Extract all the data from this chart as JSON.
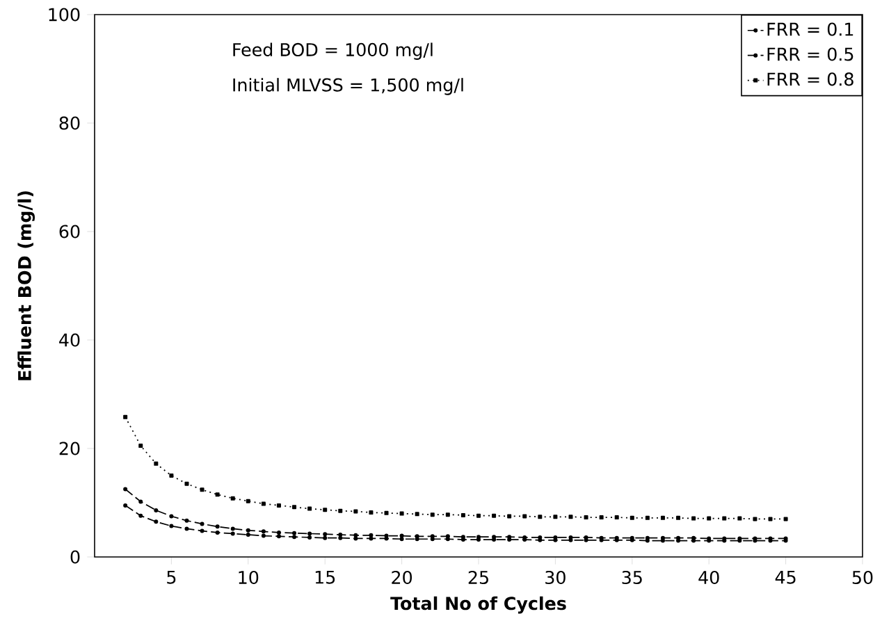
{
  "chart_data": {
    "type": "line",
    "xlabel": "Total No of Cycles",
    "ylabel": "Effluent BOD (mg/l)",
    "annotations": [
      "Feed BOD = 1000 mg/l",
      "Initial MLVSS = 1,500 mg/l"
    ],
    "x": [
      2,
      3,
      4,
      5,
      6,
      7,
      8,
      9,
      10,
      11,
      12,
      13,
      14,
      15,
      16,
      17,
      18,
      19,
      20,
      21,
      22,
      23,
      24,
      25,
      26,
      27,
      28,
      29,
      30,
      31,
      32,
      33,
      34,
      35,
      36,
      37,
      38,
      39,
      40,
      41,
      42,
      43,
      44,
      45
    ],
    "series": [
      {
        "name": "FRR = 0.1",
        "color": "#000000",
        "line_style": "dashed",
        "marker": "circle",
        "values": [
          9.5,
          7.6,
          6.5,
          5.7,
          5.2,
          4.8,
          4.5,
          4.3,
          4.1,
          3.9,
          3.8,
          3.7,
          3.6,
          3.5,
          3.5,
          3.4,
          3.4,
          3.4,
          3.3,
          3.3,
          3.3,
          3.3,
          3.2,
          3.2,
          3.2,
          3.2,
          3.2,
          3.1,
          3.1,
          3.1,
          3.1,
          3.1,
          3.1,
          3.1,
          3.0,
          3.0,
          3.0,
          3.0,
          3.0,
          3.0,
          3.0,
          3.0,
          3.0,
          3.0
        ]
      },
      {
        "name": "FRR = 0.5",
        "color": "#000000",
        "line_style": "dashed",
        "marker": "circle",
        "values": [
          12.5,
          10.2,
          8.6,
          7.5,
          6.7,
          6.1,
          5.6,
          5.2,
          4.9,
          4.7,
          4.5,
          4.4,
          4.3,
          4.2,
          4.1,
          4.0,
          4.0,
          3.9,
          3.9,
          3.8,
          3.8,
          3.8,
          3.7,
          3.7,
          3.7,
          3.7,
          3.6,
          3.6,
          3.6,
          3.6,
          3.6,
          3.5,
          3.5,
          3.5,
          3.5,
          3.5,
          3.5,
          3.5,
          3.4,
          3.4,
          3.4,
          3.4,
          3.4,
          3.4
        ]
      },
      {
        "name": "FRR = 0.8",
        "color": "#000000",
        "line_style": "dotted",
        "marker": "square",
        "values": [
          25.8,
          20.5,
          17.2,
          15.0,
          13.5,
          12.4,
          11.5,
          10.8,
          10.3,
          9.8,
          9.5,
          9.2,
          8.9,
          8.7,
          8.5,
          8.4,
          8.2,
          8.1,
          8.0,
          7.9,
          7.8,
          7.8,
          7.7,
          7.6,
          7.6,
          7.5,
          7.5,
          7.4,
          7.4,
          7.4,
          7.3,
          7.3,
          7.3,
          7.2,
          7.2,
          7.2,
          7.2,
          7.1,
          7.1,
          7.1,
          7.1,
          7.0,
          7.0,
          7.0
        ]
      }
    ],
    "xlim": [
      0,
      50
    ],
    "xticks": [
      5,
      10,
      15,
      20,
      25,
      30,
      35,
      40,
      45,
      50
    ],
    "ylim": [
      0,
      100
    ],
    "yticks": [
      0,
      20,
      40,
      60,
      80,
      100
    ],
    "grid": false,
    "legend": "top right"
  }
}
